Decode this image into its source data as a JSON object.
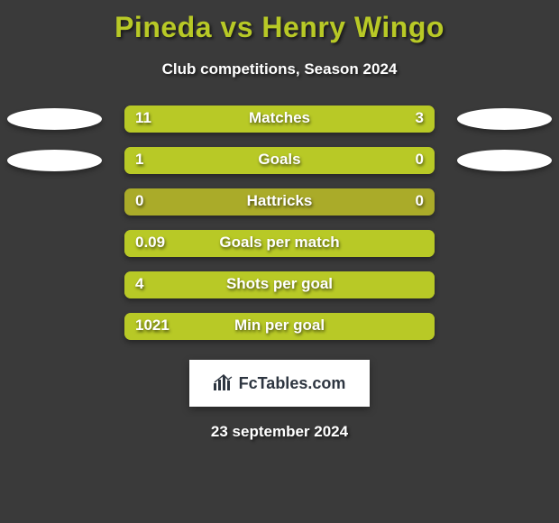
{
  "title": "Pineda vs Henry Wingo",
  "subtitle": "Club competitions, Season 2024",
  "logo_text": "FcTables.com",
  "date_text": "23 september 2024",
  "colors": {
    "background": "#3a3a3a",
    "accent": "#b8c926",
    "bar_dark": "#aaab29",
    "bar_light": "#b8c926",
    "text_white": "#ffffff",
    "oval": "#ffffff"
  },
  "stats": [
    {
      "label": "Matches",
      "left_val": "11",
      "right_val": "3",
      "left_pct": 75,
      "right_pct": 25,
      "show_left_oval": true,
      "show_right_oval": true
    },
    {
      "label": "Goals",
      "left_val": "1",
      "right_val": "0",
      "left_pct": 76,
      "right_pct": 24,
      "show_left_oval": true,
      "show_right_oval": true
    },
    {
      "label": "Hattricks",
      "left_val": "0",
      "right_val": "0",
      "left_pct": 0,
      "right_pct": 0,
      "show_left_oval": false,
      "show_right_oval": false
    },
    {
      "label": "Goals per match",
      "left_val": "0.09",
      "right_val": "",
      "left_pct": 100,
      "right_pct": 0,
      "show_left_oval": false,
      "show_right_oval": false
    },
    {
      "label": "Shots per goal",
      "left_val": "4",
      "right_val": "",
      "left_pct": 100,
      "right_pct": 0,
      "show_left_oval": false,
      "show_right_oval": false
    },
    {
      "label": "Min per goal",
      "left_val": "1021",
      "right_val": "",
      "left_pct": 100,
      "right_pct": 0,
      "show_left_oval": false,
      "show_right_oval": false
    }
  ]
}
